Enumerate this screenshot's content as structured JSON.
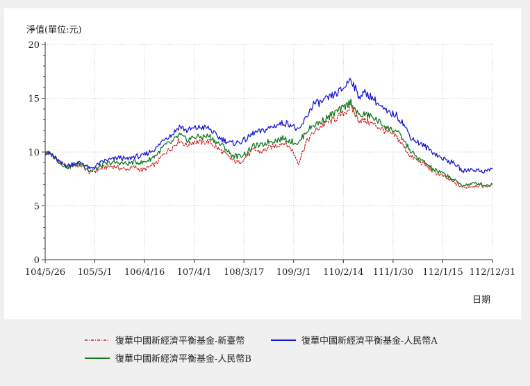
{
  "chart_data": {
    "type": "line",
    "ylabel": "淨值(單位:元)",
    "xlabel": "日期",
    "ylim": [
      0,
      20
    ],
    "yticks": [
      "0",
      "5",
      "10",
      "15",
      "20"
    ],
    "xticks": [
      "104/5/26",
      "105/5/1",
      "106/4/16",
      "107/4/1",
      "108/3/17",
      "109/3/1",
      "110/2/14",
      "111/1/30",
      "112/1/15",
      "112/12/31"
    ],
    "grid": true,
    "legend_position": "bottom",
    "series": [
      {
        "name": "復華中國新經濟平衡基金-新臺幣",
        "color": "#cc2222",
        "dashed": true,
        "values": [
          10.0,
          9.7,
          9.0,
          8.6,
          8.8,
          8.7,
          8.1,
          8.3,
          8.6,
          8.7,
          8.5,
          8.4,
          8.6,
          8.3,
          8.6,
          9.0,
          9.9,
          10.4,
          11.1,
          10.6,
          11.0,
          10.9,
          11.0,
          10.4,
          9.9,
          9.3,
          9.0,
          9.6,
          10.2,
          10.0,
          10.4,
          10.6,
          10.9,
          10.3,
          9.0,
          10.9,
          11.8,
          12.4,
          12.8,
          13.1,
          13.6,
          14.2,
          13.0,
          12.9,
          12.6,
          12.2,
          11.8,
          11.5,
          10.6,
          9.6,
          9.2,
          8.8,
          8.2,
          7.9,
          7.5,
          7.1,
          6.7,
          6.8,
          6.9,
          6.8,
          6.9
        ]
      },
      {
        "name": "復華中國新經濟平衡基金-人民幣A",
        "color": "#1a1ad6",
        "dashed": false,
        "values": [
          10.0,
          9.7,
          9.0,
          8.7,
          9.0,
          9.0,
          8.4,
          8.8,
          9.2,
          9.3,
          9.5,
          9.3,
          9.6,
          9.6,
          10.0,
          10.4,
          11.3,
          11.6,
          12.4,
          12.0,
          12.2,
          12.3,
          12.2,
          11.5,
          11.1,
          10.8,
          10.9,
          11.2,
          11.8,
          11.9,
          12.2,
          12.5,
          12.7,
          12.6,
          11.9,
          13.2,
          14.5,
          14.6,
          15.0,
          15.4,
          15.9,
          16.9,
          15.2,
          15.5,
          15.0,
          14.2,
          13.6,
          13.5,
          12.7,
          11.4,
          10.9,
          10.5,
          10.0,
          9.5,
          9.2,
          8.9,
          8.2,
          8.4,
          8.3,
          8.2,
          8.5
        ]
      },
      {
        "name": "復華中國新經濟平衡基金-人民幣B",
        "color": "#117a1c",
        "dashed": false,
        "values": [
          10.0,
          9.7,
          9.0,
          8.6,
          8.8,
          8.9,
          8.2,
          8.5,
          8.9,
          9.0,
          9.0,
          8.9,
          9.1,
          9.0,
          9.3,
          9.8,
          10.6,
          10.9,
          11.6,
          11.1,
          11.4,
          11.4,
          11.5,
          10.9,
          10.5,
          9.7,
          9.6,
          9.9,
          10.6,
          10.6,
          11.0,
          11.1,
          11.3,
          11.0,
          10.8,
          11.9,
          12.5,
          12.8,
          13.3,
          13.7,
          14.1,
          14.7,
          13.4,
          13.5,
          13.2,
          12.7,
          12.2,
          12.0,
          11.2,
          10.1,
          9.4,
          9.0,
          8.4,
          8.1,
          7.8,
          7.3,
          6.9,
          7.0,
          7.1,
          6.9,
          7.0
        ]
      }
    ]
  }
}
